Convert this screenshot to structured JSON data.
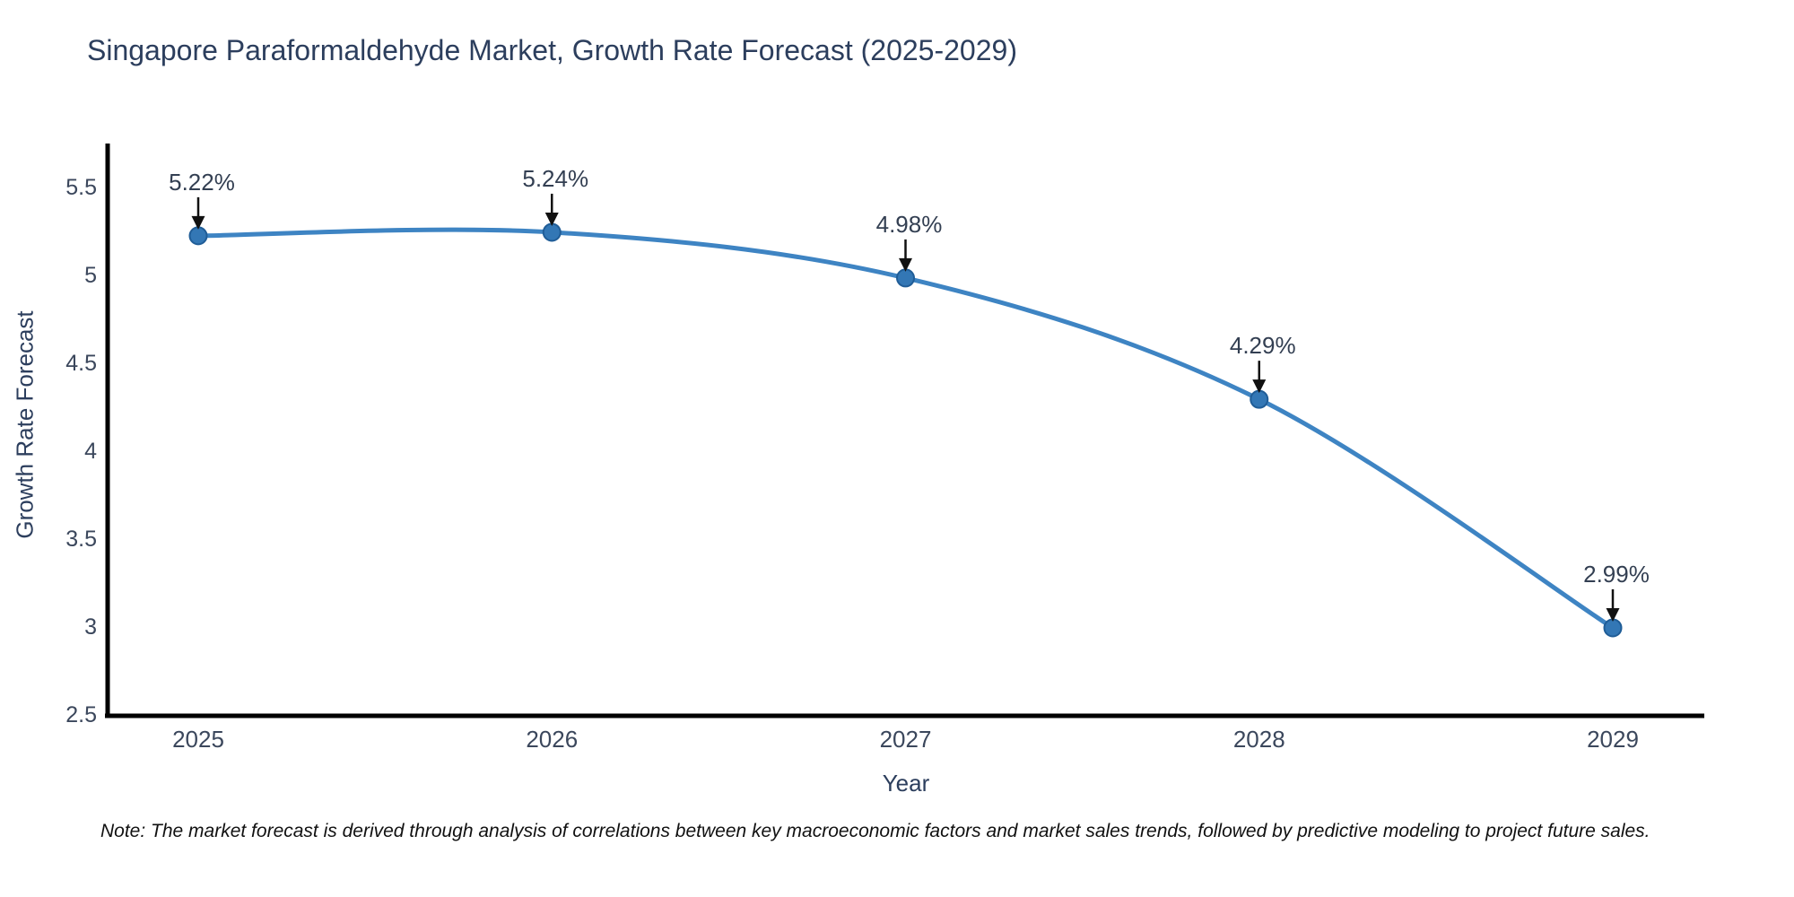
{
  "note": "Note: The market forecast is derived through analysis of correlations between key macroeconomic factors and market sales trends, followed by predictive modeling to project future sales.",
  "colors": {
    "line": "#3e84c3",
    "marker_fill": "#3377b5",
    "marker_edge": "#205d97",
    "arrow": "#111111",
    "axis": "#000000",
    "title_text": "#2c3e5d",
    "tick_text": "#3b475c",
    "annotation_text": "#333f52"
  },
  "chart_data": {
    "type": "line",
    "title": "Singapore Paraformaldehyde Market, Growth Rate Forecast (2025-2029)",
    "x": [
      2025,
      2026,
      2027,
      2028,
      2029
    ],
    "values": [
      5.22,
      5.24,
      4.98,
      4.29,
      2.99
    ],
    "point_labels": [
      "5.22%",
      "5.24%",
      "4.98%",
      "4.29%",
      "2.99%"
    ],
    "xlabel": "Year",
    "ylabel": "Growth Rate Forecast",
    "ylim": [
      2.5,
      5.5
    ],
    "yticks": [
      5.5,
      5,
      4.5,
      4,
      3.5,
      3,
      2.5
    ],
    "grid": false,
    "legend": "none",
    "line_shape": "spline",
    "markers": true
  }
}
